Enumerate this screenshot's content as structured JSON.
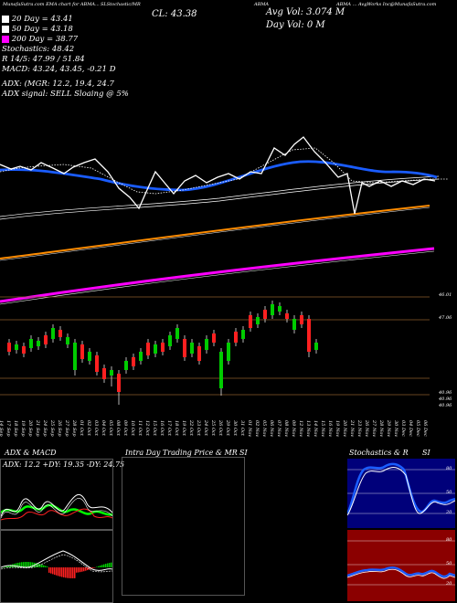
{
  "header": {
    "top_left": "MunafaSutra.com EMA chart for ABMA...",
    "top_mid_1": "SLStochastic/MR",
    "top_mid_2": "ABMA",
    "top_right": "ABMA ... AvgWorks Inc@MunafaSutra.com",
    "close_label": "CL: 43.38",
    "avg_vol": "Avg Vol: 3.074  M",
    "day_vol": "Day Vol: 0  M"
  },
  "legend": [
    {
      "label": "20  Day = 43.41",
      "color": "#ffffff"
    },
    {
      "label": "50  Day = 43.18",
      "color": "#ffffff"
    },
    {
      "label": "200  Day = 38.77",
      "color": "#ff00ff"
    }
  ],
  "indicators": {
    "stochastics": "Stochastics: 48.42",
    "r_line": "R  14/5: 47.99 / 51.84",
    "macd": "MACD: 43.24,  43.45,  -0.21 D",
    "adx": "ADX:                    (MGR: 12.2,  19.4,  24.7",
    "adx_signal": "ADX  signal: SELL  Sloaing @ 5%"
  },
  "price_levels": {
    "p1": "46.01",
    "p2": "47.06",
    "p3": "40.96",
    "p4": "40.96",
    "p5": "40.96"
  },
  "dates": [
    "14 Sep",
    "17 Sep",
    "18 Sep",
    "19 Sep",
    "20 Sep",
    "21 Sep",
    "24 Sep",
    "25 Sep",
    "26 Sep",
    "27 Sep",
    "28 Sep",
    "01 Oct",
    "02 Oct",
    "03 Oct",
    "04 Oct",
    "05 Oct",
    "08 Oct",
    "09 Oct",
    "10 Oct",
    "11 Oct",
    "12 Oct",
    "15 Oct",
    "16 Oct",
    "17 Oct",
    "18 Oct",
    "19 Oct",
    "22 Oct",
    "23 Oct",
    "24 Oct",
    "25 Oct",
    "26 Oct",
    "29 Oct",
    "30 Oct",
    "31 Oct",
    "01 Nov",
    "02 Nov",
    "05 Nov",
    "06 Nov",
    "07 Nov",
    "08 Nov",
    "09 Nov",
    "12 Nov",
    "13 Nov",
    "14 Nov",
    "15 Nov",
    "16 Nov",
    "19 Nov",
    "20 Nov",
    "21 Nov",
    "23 Nov",
    "26 Nov",
    "27 Nov",
    "28 Nov",
    "29 Nov",
    "30 Nov",
    "03 Dec",
    "04 Dec",
    "05 Dec",
    "06 Dec"
  ],
  "panels": {
    "adx_macd_title": "ADX  & MACD",
    "adx_values": "ADX: 12.2   +DY: 19.35  -DY: 24.75",
    "intraday_title": "Intra  Day Trading Price  & MR",
    "intraday_si": "SI",
    "stoch_title": "Stochastics & R",
    "stoch_si": "SI",
    "stoch_ticks": [
      "80",
      "50",
      "20"
    ],
    "r_ticks": [
      "80",
      "50",
      "20"
    ]
  },
  "colors": {
    "ema_blue": "#1a5cff",
    "ema_orange": "#ff8c00",
    "ema_magenta": "#ff00ff",
    "up": "#00cc00",
    "down": "#ff2020",
    "stoch_bg": "#00007a",
    "r_bg": "#8b0000"
  }
}
